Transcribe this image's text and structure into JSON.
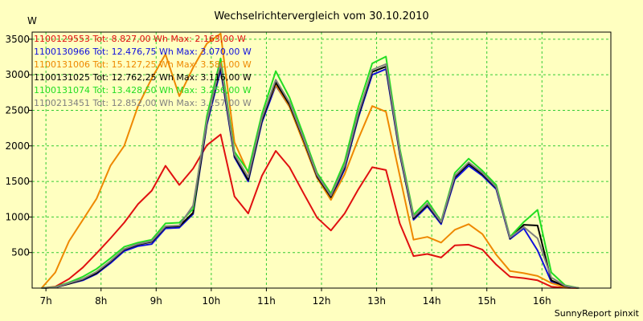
{
  "chart_data": {
    "type": "line",
    "title": "Wechselrichtervergleich vom 30.10.2010",
    "ylabel": "W",
    "xlabel": "",
    "footer": "SunnyReport pinxit",
    "ylim": [
      0,
      3600
    ],
    "xlim": [
      6.75,
      17.25
    ],
    "yticks": [
      500,
      1000,
      1500,
      2000,
      2500,
      3000,
      3500
    ],
    "yticklabels": [
      "500",
      "1000",
      "1500",
      "2000",
      "2500",
      "3000",
      "3500"
    ],
    "xticks": [
      7,
      8,
      9,
      10,
      11,
      12,
      13,
      14,
      15,
      16
    ],
    "xticklabels": [
      "7h",
      "8h",
      "9h",
      "10h",
      "11h",
      "12h",
      "13h",
      "14h",
      "15h",
      "16h"
    ],
    "grid": true,
    "legend_position": "top-left",
    "colors": {
      "background": "#ffffc0",
      "plot_border": "#000000",
      "grid": "#33cc33"
    },
    "series": [
      {
        "name": "1100129553",
        "legend_label": "1100129553 Tot: 8.827,00 Wh Max: 2.163,00 W",
        "color": "#e01010",
        "x": [
          6.92,
          7.17,
          7.42,
          7.67,
          7.92,
          8.17,
          8.42,
          8.67,
          8.92,
          9.17,
          9.42,
          9.67,
          9.92,
          10.17,
          10.42,
          10.67,
          10.92,
          11.17,
          11.42,
          11.67,
          11.92,
          12.17,
          12.42,
          12.67,
          12.92,
          13.17,
          13.42,
          13.67,
          13.92,
          14.17,
          14.42,
          14.67,
          14.92,
          15.17,
          15.42,
          15.67,
          15.92,
          16.17,
          16.42,
          16.67
        ],
        "y": [
          0,
          20,
          130,
          290,
          490,
          700,
          920,
          1180,
          1370,
          1720,
          1450,
          1680,
          2010,
          2160,
          1290,
          1050,
          1580,
          1930,
          1700,
          1340,
          990,
          810,
          1050,
          1390,
          1700,
          1660,
          910,
          450,
          480,
          430,
          600,
          610,
          540,
          330,
          160,
          140,
          110,
          20,
          5,
          0
        ]
      },
      {
        "name": "1100130966",
        "legend_label": "1100130966 Tot: 12.476,75 Wh Max: 3.070,00 W",
        "color": "#1010dd",
        "x": [
          6.92,
          7.17,
          7.42,
          7.67,
          7.92,
          8.17,
          8.42,
          8.67,
          8.92,
          9.17,
          9.42,
          9.67,
          9.92,
          10.17,
          10.42,
          10.67,
          10.92,
          11.17,
          11.42,
          11.67,
          11.92,
          12.17,
          12.42,
          12.67,
          12.92,
          13.17,
          13.42,
          13.67,
          13.92,
          14.17,
          14.42,
          14.67,
          14.92,
          15.17,
          15.42,
          15.67,
          15.92,
          16.17,
          16.42,
          16.67
        ],
        "y": [
          0,
          10,
          60,
          110,
          200,
          350,
          520,
          590,
          620,
          840,
          850,
          1040,
          2300,
          3070,
          1840,
          1500,
          2330,
          2850,
          2550,
          2060,
          1550,
          1260,
          1670,
          2400,
          3000,
          3080,
          1880,
          960,
          1150,
          900,
          1530,
          1720,
          1580,
          1390,
          690,
          840,
          530,
          90,
          20,
          0
        ]
      },
      {
        "name": "1100131006",
        "legend_label": "1100131006 Tot: 15.127,25 Wh Max: 3.580,00 W",
        "color": "#ee8800",
        "x": [
          6.92,
          7.17,
          7.42,
          7.67,
          7.92,
          8.17,
          8.42,
          8.67,
          8.92,
          9.17,
          9.42,
          9.67,
          9.92,
          10.17,
          10.42,
          10.67,
          10.92,
          11.17,
          11.42,
          11.67,
          11.92,
          12.17,
          12.42,
          12.67,
          12.92,
          13.17,
          13.42,
          13.67,
          13.92,
          14.17,
          14.42,
          14.67,
          14.92,
          15.17,
          15.42,
          15.67,
          15.92,
          16.17,
          16.42,
          16.67
        ],
        "y": [
          0,
          220,
          660,
          960,
          1260,
          1720,
          2000,
          2560,
          2950,
          3290,
          2700,
          3100,
          3440,
          3580,
          2050,
          1620,
          2400,
          2860,
          2550,
          2050,
          1550,
          1240,
          1600,
          2100,
          2560,
          2480,
          1580,
          680,
          720,
          640,
          820,
          900,
          760,
          470,
          240,
          210,
          170,
          70,
          15,
          0
        ]
      },
      {
        "name": "1100131025",
        "legend_label": "1100131025 Tot: 12.762,25 Wh Max: 3.116,00 W",
        "color": "#000000",
        "x": [
          6.92,
          7.17,
          7.42,
          7.67,
          7.92,
          8.17,
          8.42,
          8.67,
          8.92,
          9.17,
          9.42,
          9.67,
          9.92,
          10.17,
          10.42,
          10.67,
          10.92,
          11.17,
          11.42,
          11.67,
          11.92,
          12.17,
          12.42,
          12.67,
          12.92,
          13.17,
          13.42,
          13.67,
          13.92,
          14.17,
          14.42,
          14.67,
          14.92,
          15.17,
          15.42,
          15.67,
          15.92,
          16.17,
          16.42,
          16.67
        ],
        "y": [
          0,
          10,
          60,
          120,
          210,
          370,
          540,
          610,
          650,
          860,
          870,
          1060,
          2330,
          3116,
          1860,
          1520,
          2360,
          2890,
          2580,
          2090,
          1570,
          1280,
          1700,
          2430,
          3040,
          3116,
          1900,
          980,
          1170,
          920,
          1560,
          1750,
          1600,
          1410,
          700,
          890,
          880,
          110,
          25,
          0
        ]
      },
      {
        "name": "1100131074",
        "legend_label": "1100131074 Tot: 13.428,50 Wh Max: 3.256,00 W",
        "color": "#22dd22",
        "x": [
          6.92,
          7.17,
          7.42,
          7.67,
          7.92,
          8.17,
          8.42,
          8.67,
          8.92,
          9.17,
          9.42,
          9.67,
          9.92,
          10.17,
          10.42,
          10.67,
          10.92,
          11.17,
          11.42,
          11.67,
          11.92,
          12.17,
          12.42,
          12.67,
          12.92,
          13.17,
          13.42,
          13.67,
          13.92,
          14.17,
          14.42,
          14.67,
          14.92,
          15.17,
          15.42,
          15.67,
          15.92,
          16.17,
          16.42,
          16.67
        ],
        "y": [
          0,
          15,
          80,
          160,
          270,
          420,
          580,
          640,
          680,
          910,
          920,
          1110,
          2420,
          3230,
          1920,
          1640,
          2450,
          3050,
          2680,
          2160,
          1620,
          1330,
          1780,
          2550,
          3160,
          3256,
          1960,
          1030,
          1230,
          940,
          1620,
          1820,
          1650,
          1450,
          720,
          930,
          1100,
          220,
          40,
          0
        ]
      },
      {
        "name": "1100213451",
        "legend_label": "1100213451 Tot: 12.852,00 Wh Max: 3.157,00 W",
        "color": "#808080",
        "x": [
          6.92,
          7.17,
          7.42,
          7.67,
          7.92,
          8.17,
          8.42,
          8.67,
          8.92,
          9.17,
          9.42,
          9.67,
          9.92,
          10.17,
          10.42,
          10.67,
          10.92,
          11.17,
          11.42,
          11.67,
          11.92,
          12.17,
          12.42,
          12.67,
          12.92,
          13.17,
          13.42,
          13.67,
          13.92,
          14.17,
          14.42,
          14.67,
          14.92,
          15.17,
          15.42,
          15.67,
          15.92,
          16.17,
          16.42,
          16.67
        ],
        "y": [
          0,
          10,
          70,
          130,
          230,
          380,
          550,
          620,
          660,
          870,
          880,
          1160,
          2350,
          3157,
          1880,
          1560,
          2390,
          2930,
          2610,
          2110,
          1590,
          1300,
          1720,
          2460,
          3070,
          3150,
          1920,
          1000,
          1190,
          930,
          1580,
          1770,
          1620,
          1420,
          710,
          860,
          700,
          150,
          30,
          0
        ]
      }
    ]
  }
}
